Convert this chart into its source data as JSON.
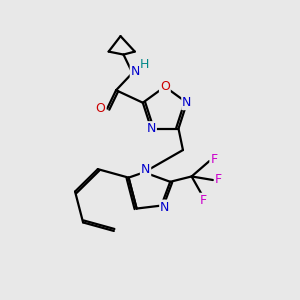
{
  "bg_color": "#e8e8e8",
  "atom_colors": {
    "C": "#000000",
    "N": "#0000cc",
    "O": "#cc0000",
    "F": "#cc00cc",
    "H": "#008888"
  },
  "bond_color": "#000000",
  "bond_width": 1.6
}
